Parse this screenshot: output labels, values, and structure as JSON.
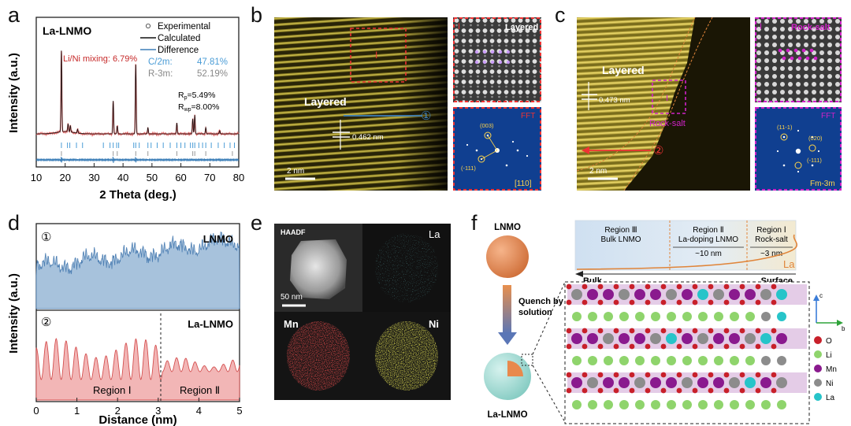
{
  "panels": {
    "a": "a",
    "b": "b",
    "c": "c",
    "d": "d",
    "e": "e",
    "f": "f"
  },
  "xrd": {
    "title": "La-LNMO",
    "legend_exp": "Experimental",
    "legend_calc": "Calculated",
    "legend_diff": "Difference",
    "c2m": "C/2m:",
    "c2m_val": "47.81%",
    "r3m": "R-3m:",
    "r3m_val": "52.19%",
    "mixing": "Li/Ni mixing: 6.79%",
    "rp": "R",
    "rp_sub": "p",
    "rp_val": "=5.49%",
    "rwp": "R",
    "rwp_sub": "wp",
    "rwp_val": "=8.00%",
    "ylabel": "Intensity (a.u.)",
    "xlabel": "2 Theta (deg.)",
    "xticks": [
      "10",
      "20",
      "30",
      "40",
      "50",
      "60",
      "70",
      "80"
    ]
  },
  "tem_b": {
    "layered": "Layered",
    "spacing": "0.462 nm",
    "scale": "2 nm",
    "marker": "①",
    "box_label": "I",
    "inset_label": "Layered",
    "inset_roman": "I",
    "fft": "FFT",
    "zone": "[110]",
    "spot1": "(003)",
    "spot2": "(-111)"
  },
  "tem_c": {
    "layered": "Layered",
    "spacing": "0.473 nm",
    "scale": "2 nm",
    "marker": "②",
    "box_label": "I",
    "rocksalt": "Rock-salt",
    "inset_label": "Rock-salt",
    "inset_roman": "I",
    "fft": "FFT",
    "zone": "Fm-3m",
    "spot1": "(11-1)",
    "spot2": "(020)",
    "spot3": "(-111)"
  },
  "profile": {
    "top_marker": "①",
    "top_label": "LNMO",
    "bot_marker": "②",
    "bot_label": "La-LNMO",
    "region1": "Region Ⅰ",
    "region2": "Region Ⅱ",
    "ylabel": "Intensity (a.u.)",
    "xlabel": "Distance (nm)",
    "xticks": [
      "0",
      "1",
      "2",
      "3",
      "4",
      "5"
    ]
  },
  "eds": {
    "haadf": "HAADF",
    "scale": "50 nm",
    "la": "La",
    "mn": "Mn",
    "ni": "Ni"
  },
  "schematic": {
    "lnmo": "LNMO",
    "quench1": "Quench by",
    "quench2": "solution",
    "la_lnmo": "La-LNMO",
    "region3_a": "Region Ⅲ",
    "region3_b": "Bulk LNMO",
    "region2_a": "Region Ⅱ",
    "region2_b": "La-doping LNMO",
    "region2_c": "~10 nm",
    "region1_a": "Region Ⅰ",
    "region1_b": "Rock-salt",
    "region1_c": "~3 nm",
    "la_curve": "La",
    "bulk": "Bulk",
    "surface": "Surface",
    "legend": [
      {
        "name": "O",
        "color": "#c8202a"
      },
      {
        "name": "Li",
        "color": "#8fd46c"
      },
      {
        "name": "Mn",
        "color": "#8a1a8e"
      },
      {
        "name": "Ni",
        "color": "#8c8c8c"
      },
      {
        "name": "La",
        "color": "#27c4c9"
      }
    ],
    "axis_c": "c",
    "axis_b": "b"
  }
}
